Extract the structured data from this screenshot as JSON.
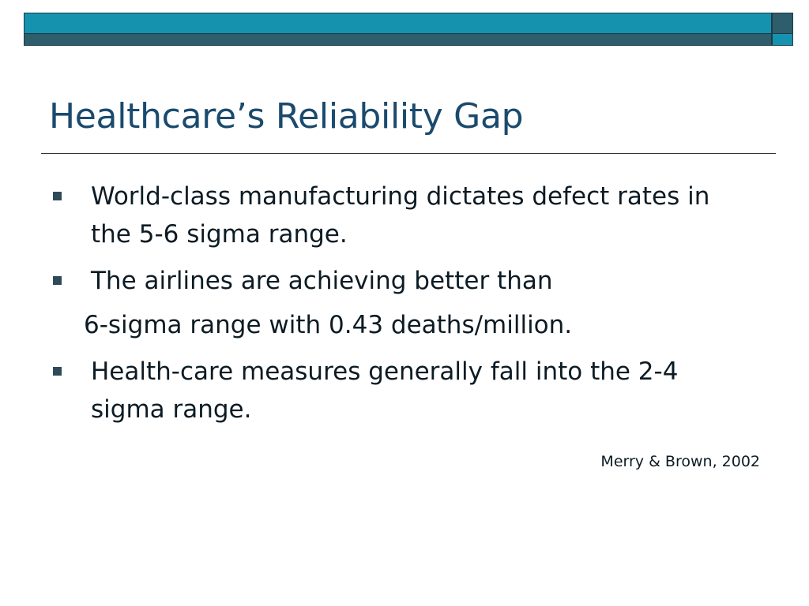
{
  "slide": {
    "title": "Healthcare’s Reliability Gap",
    "bullets": [
      {
        "text": "World-class manufacturing dictates defect rates in the 5-6 sigma range."
      },
      {
        "text": "The airlines are achieving better than",
        "continuation": "6-sigma range with 0.43 deaths/million."
      },
      {
        "text": "Health-care measures generally fall into the 2-4 sigma range."
      }
    ],
    "citation": "Merry & Brown, 2002"
  },
  "theme": {
    "title_color": "#1a4a6e",
    "bar_light": "#1592ae",
    "bar_dark": "#2e5d6c",
    "bullet_color": "#2e4a58"
  }
}
